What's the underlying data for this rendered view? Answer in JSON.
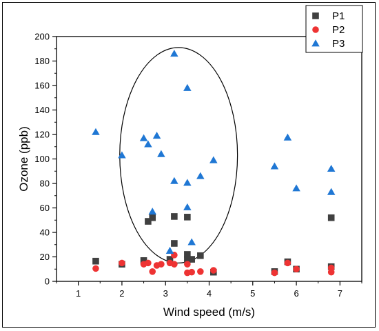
{
  "chart_data": {
    "type": "scatter",
    "xlabel": "Wind speed (m/s)",
    "ylabel": "Ozone (ppb)",
    "xlim": [
      0.5,
      7.5
    ],
    "ylim": [
      0,
      200
    ],
    "xticks": [
      1,
      2,
      3,
      4,
      5,
      6,
      7
    ],
    "yticks": [
      0,
      20,
      40,
      60,
      80,
      100,
      120,
      140,
      160,
      180,
      200
    ],
    "grid": false,
    "legend_position": "top-right",
    "annotation": {
      "shape": "ellipse",
      "center": [
        3.3,
        103
      ],
      "rx_data": 1.35,
      "ry_data": 88
    },
    "series": [
      {
        "name": "P1",
        "marker": "square",
        "color": "#404040",
        "points": [
          [
            1.4,
            16.5
          ],
          [
            2.0,
            14.0
          ],
          [
            2.5,
            17.0
          ],
          [
            2.6,
            49.0
          ],
          [
            2.7,
            52.0
          ],
          [
            3.1,
            18.0
          ],
          [
            3.2,
            31.0
          ],
          [
            3.2,
            53.0
          ],
          [
            3.5,
            22.0
          ],
          [
            3.5,
            52.5
          ],
          [
            3.5,
            18.0
          ],
          [
            3.6,
            18.0
          ],
          [
            3.8,
            21.0
          ],
          [
            4.1,
            7.5
          ],
          [
            5.5,
            8.0
          ],
          [
            5.8,
            16.0
          ],
          [
            6.0,
            10.0
          ],
          [
            6.8,
            12.0
          ],
          [
            6.8,
            52.0
          ]
        ]
      },
      {
        "name": "P2",
        "marker": "circle",
        "color": "#ee3333",
        "points": [
          [
            1.4,
            10.5
          ],
          [
            2.0,
            15.0
          ],
          [
            2.5,
            14.0
          ],
          [
            2.6,
            15.0
          ],
          [
            2.7,
            8.0
          ],
          [
            2.8,
            13.0
          ],
          [
            2.9,
            14.0
          ],
          [
            3.1,
            15.0
          ],
          [
            3.2,
            21.5
          ],
          [
            3.2,
            14.0
          ],
          [
            3.5,
            14.0
          ],
          [
            3.5,
            7.0
          ],
          [
            3.6,
            7.5
          ],
          [
            3.8,
            8.0
          ],
          [
            4.1,
            9.0
          ],
          [
            5.5,
            7.0
          ],
          [
            5.8,
            15.0
          ],
          [
            6.0,
            10.0
          ],
          [
            6.8,
            11.0
          ],
          [
            6.8,
            7.5
          ]
        ]
      },
      {
        "name": "P3",
        "marker": "triangle",
        "color": "#1f77d4",
        "points": [
          [
            1.4,
            122.0
          ],
          [
            2.0,
            103.0
          ],
          [
            2.5,
            117.0
          ],
          [
            2.6,
            112.0
          ],
          [
            2.7,
            57.0
          ],
          [
            2.8,
            119.0
          ],
          [
            2.9,
            104.0
          ],
          [
            3.1,
            25.0
          ],
          [
            3.2,
            186.0
          ],
          [
            3.2,
            82.0
          ],
          [
            3.5,
            158.0
          ],
          [
            3.5,
            80.5
          ],
          [
            3.5,
            60.5
          ],
          [
            3.6,
            32.0
          ],
          [
            3.8,
            86.0
          ],
          [
            4.1,
            99.0
          ],
          [
            5.5,
            94.0
          ],
          [
            5.8,
            117.5
          ],
          [
            6.0,
            76.0
          ],
          [
            6.8,
            92.0
          ],
          [
            6.8,
            73.0
          ]
        ]
      }
    ]
  }
}
